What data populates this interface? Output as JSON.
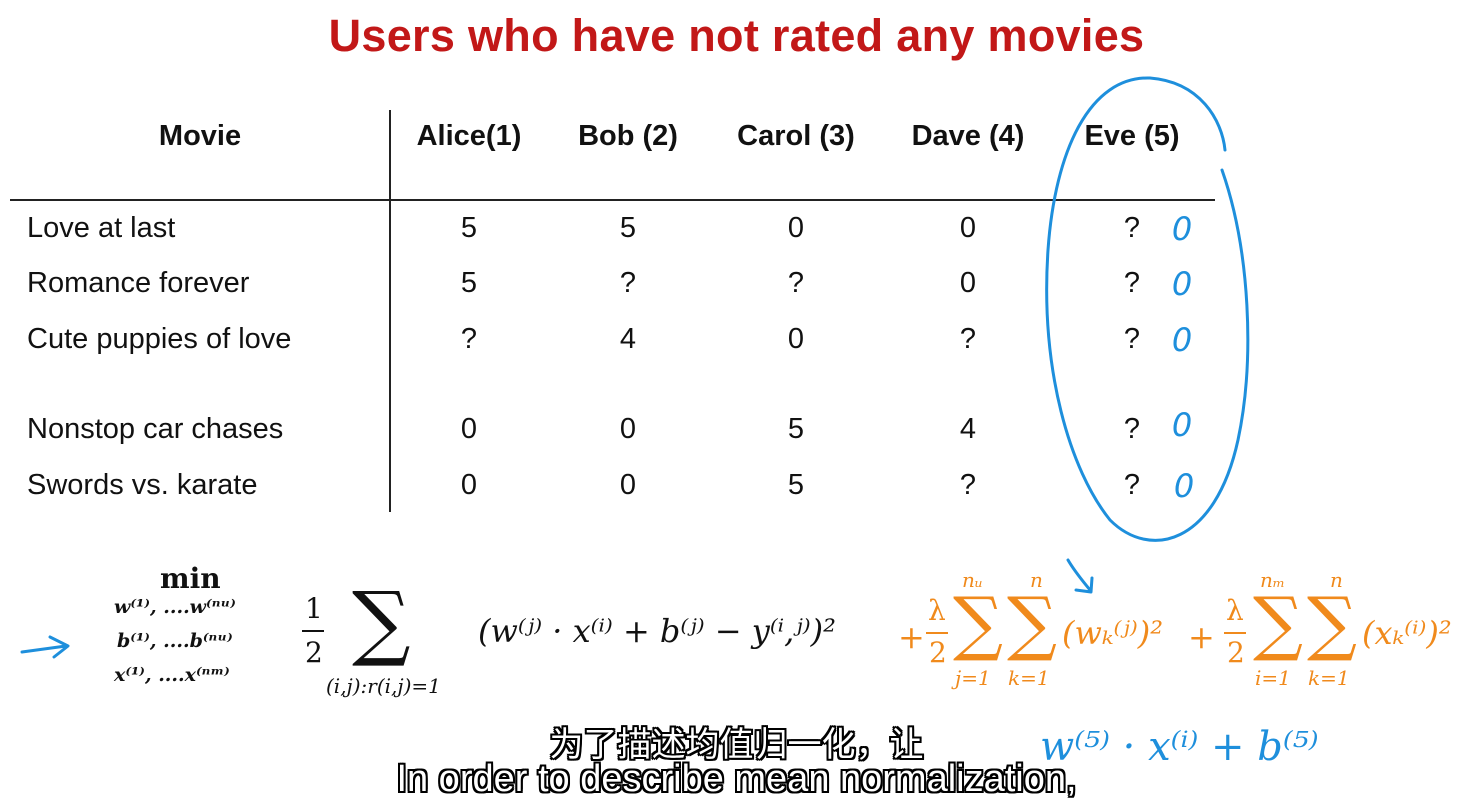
{
  "title": "Users who have not rated any movies",
  "table": {
    "headers": [
      "Movie",
      "Alice(1)",
      "Bob (2)",
      "Carol (3)",
      "Dave (4)",
      "Eve (5)"
    ],
    "rows": [
      {
        "movie": "Love at last",
        "ratings": [
          "5",
          "5",
          "0",
          "0",
          "?"
        ]
      },
      {
        "movie": "Romance forever",
        "ratings": [
          "5",
          "?",
          "?",
          "0",
          "?"
        ]
      },
      {
        "movie": "Cute puppies of love",
        "ratings": [
          "?",
          "4",
          "0",
          "?",
          "?"
        ]
      },
      {
        "movie": "Nonstop car chases",
        "ratings": [
          "0",
          "0",
          "5",
          "4",
          "?"
        ]
      },
      {
        "movie": "Swords vs. karate",
        "ratings": [
          "0",
          "0",
          "5",
          "?",
          "?"
        ]
      }
    ],
    "eve_annotations": [
      "0",
      "0",
      "0",
      "0",
      "0"
    ]
  },
  "formula": {
    "min": "min",
    "vars": [
      "w⁽¹⁾, ....w⁽ⁿᵘ⁾",
      "b⁽¹⁾, ....b⁽ⁿᵘ⁾",
      "x⁽¹⁾, ....x⁽ⁿᵐ⁾"
    ],
    "half_num": "1",
    "half_den": "2",
    "sum_symbol": "∑",
    "sum_sub": "(i,j):r(i,j)=1",
    "main_term": "(w⁽ʲ⁾ · x⁽ⁱ⁾ + b⁽ʲ⁾ − y⁽ⁱ,ʲ⁾)²",
    "reg1": {
      "plus": "+",
      "lambda": "λ",
      "den": "2",
      "sup1": "nᵤ",
      "sub1": "j=1",
      "sup2": "n",
      "sub2": "k=1",
      "term": "(wₖ⁽ʲ⁾)²"
    },
    "reg2": {
      "plus": "+",
      "lambda": "λ",
      "den": "2",
      "sup1": "nₘ",
      "sub1": "i=1",
      "sup2": "n",
      "sub2": "k=1",
      "term": "(xₖ⁽ⁱ⁾)²"
    }
  },
  "handwriting": {
    "bottom_right": "w⁽⁵⁾ · x⁽ⁱ⁾ + b⁽⁵⁾"
  },
  "subtitles": {
    "chinese": "为了描述均值归一化，让",
    "english": "In order to describe mean normalization,"
  },
  "colors": {
    "title": "#c21818",
    "ink": "#1e8fdc",
    "regularization": "#f08a1c"
  }
}
